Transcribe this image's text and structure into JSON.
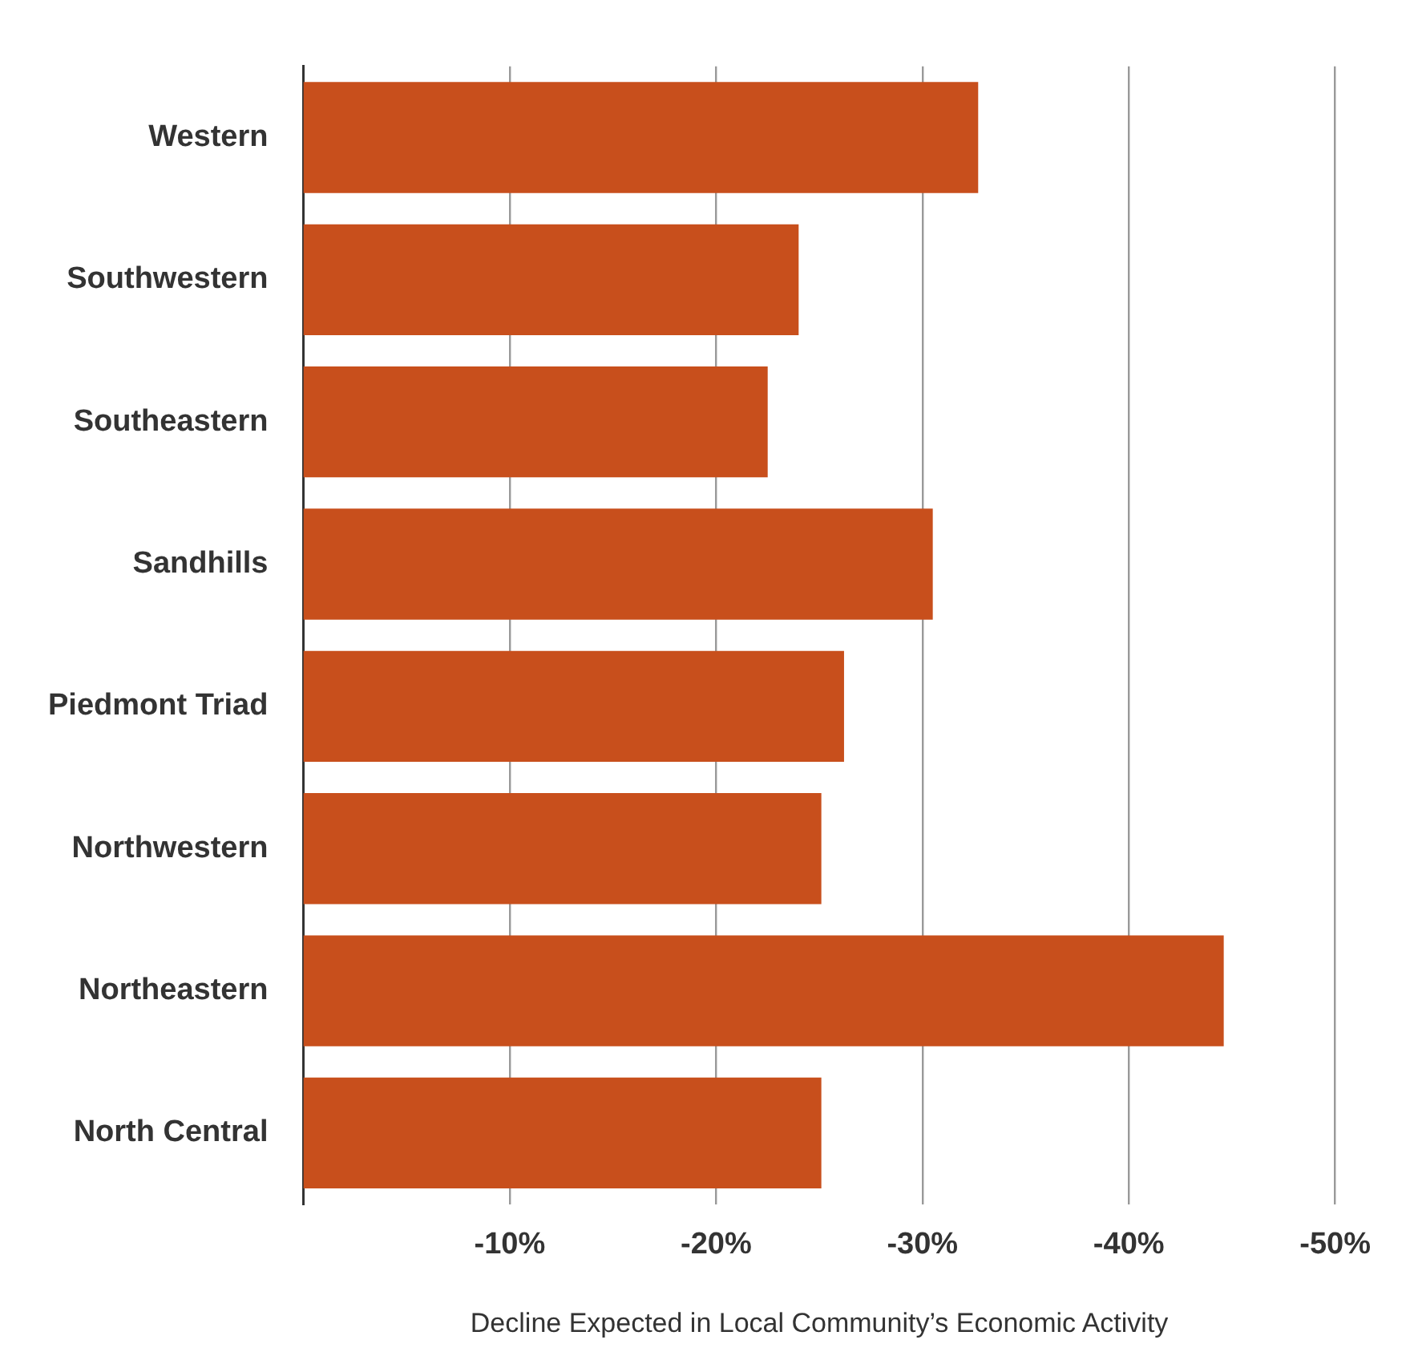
{
  "chart_data": {
    "type": "bar",
    "orientation": "horizontal",
    "xlabel": "Decline Expected in Local Community’s Economic Activity",
    "categories": [
      "Western",
      "Southwestern",
      "Southeastern",
      "Sandhills",
      "Piedmont Triad",
      "Northwestern",
      "Northeastern",
      "North Central"
    ],
    "values": [
      -32.7,
      -24.0,
      -22.5,
      -30.5,
      -26.2,
      -25.1,
      -44.6,
      -25.1
    ],
    "color": "#c84f1c",
    "xlim": [
      0,
      -50
    ],
    "xticks": [
      {
        "value": -10,
        "label": "-10%"
      },
      {
        "value": -20,
        "label": "-20%"
      },
      {
        "value": -30,
        "label": "-30%"
      },
      {
        "value": -40,
        "label": "-40%"
      },
      {
        "value": -50,
        "label": "-50%"
      }
    ],
    "grid": "x",
    "legend": false
  }
}
